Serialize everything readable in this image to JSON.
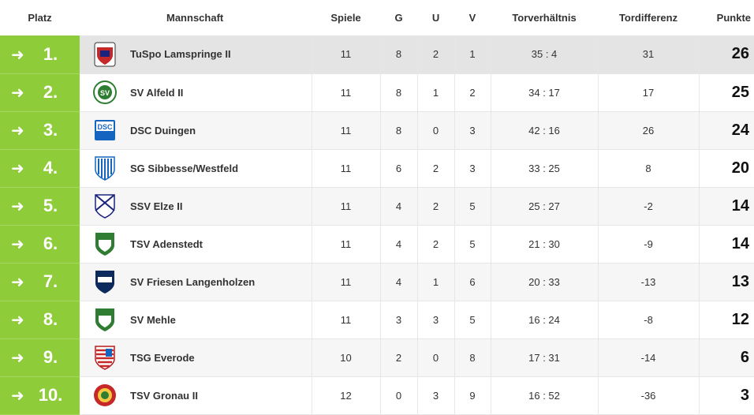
{
  "headers": {
    "place": "Platz",
    "team": "Mannschaft",
    "games": "Spiele",
    "wins": "G",
    "draws": "U",
    "losses": "V",
    "goals": "Torverhältnis",
    "diff": "Tordifferenz",
    "points": "Punkte"
  },
  "accent_color": "#8fcc3a",
  "rows": [
    {
      "place": "1.",
      "team": "TuSpo Lamspringe II",
      "games": "11",
      "wins": "8",
      "draws": "2",
      "losses": "1",
      "goals": "35 : 4",
      "diff": "31",
      "points": "26",
      "logo": "crest-red-icon"
    },
    {
      "place": "2.",
      "team": "SV Alfeld II",
      "games": "11",
      "wins": "8",
      "draws": "1",
      "losses": "2",
      "goals": "34 : 17",
      "diff": "17",
      "points": "25",
      "logo": "crest-green-round-icon"
    },
    {
      "place": "3.",
      "team": "DSC Duingen",
      "games": "11",
      "wins": "8",
      "draws": "0",
      "losses": "3",
      "goals": "42 : 16",
      "diff": "26",
      "points": "24",
      "logo": "crest-blue-dsc-icon"
    },
    {
      "place": "4.",
      "team": "SG Sibbesse/Westfeld",
      "games": "11",
      "wins": "6",
      "draws": "2",
      "losses": "3",
      "goals": "33 : 25",
      "diff": "8",
      "points": "20",
      "logo": "crest-blue-stripes-icon"
    },
    {
      "place": "5.",
      "team": "SSV Elze II",
      "games": "11",
      "wins": "4",
      "draws": "2",
      "losses": "5",
      "goals": "25 : 27",
      "diff": "-2",
      "points": "14",
      "logo": "crest-white-blue-icon"
    },
    {
      "place": "6.",
      "team": "TSV Adenstedt",
      "games": "11",
      "wins": "4",
      "draws": "2",
      "losses": "5",
      "goals": "21 : 30",
      "diff": "-9",
      "points": "14",
      "logo": "crest-green-shield-icon"
    },
    {
      "place": "7.",
      "team": "SV Friesen Langenholzen",
      "games": "11",
      "wins": "4",
      "draws": "1",
      "losses": "6",
      "goals": "20 : 33",
      "diff": "-13",
      "points": "13",
      "logo": "crest-navy-icon"
    },
    {
      "place": "8.",
      "team": "SV Mehle",
      "games": "11",
      "wins": "3",
      "draws": "3",
      "losses": "5",
      "goals": "16 : 24",
      "diff": "-8",
      "points": "12",
      "logo": "crest-green-shield-icon"
    },
    {
      "place": "9.",
      "team": "TSG Everode",
      "games": "10",
      "wins": "2",
      "draws": "0",
      "losses": "8",
      "goals": "17 : 31",
      "diff": "-14",
      "points": "6",
      "logo": "crest-red-stripes-icon"
    },
    {
      "place": "10.",
      "team": "TSV Gronau II",
      "games": "12",
      "wins": "0",
      "draws": "3",
      "losses": "9",
      "goals": "16 : 52",
      "diff": "-36",
      "points": "3",
      "logo": "crest-red-green-icon"
    }
  ]
}
